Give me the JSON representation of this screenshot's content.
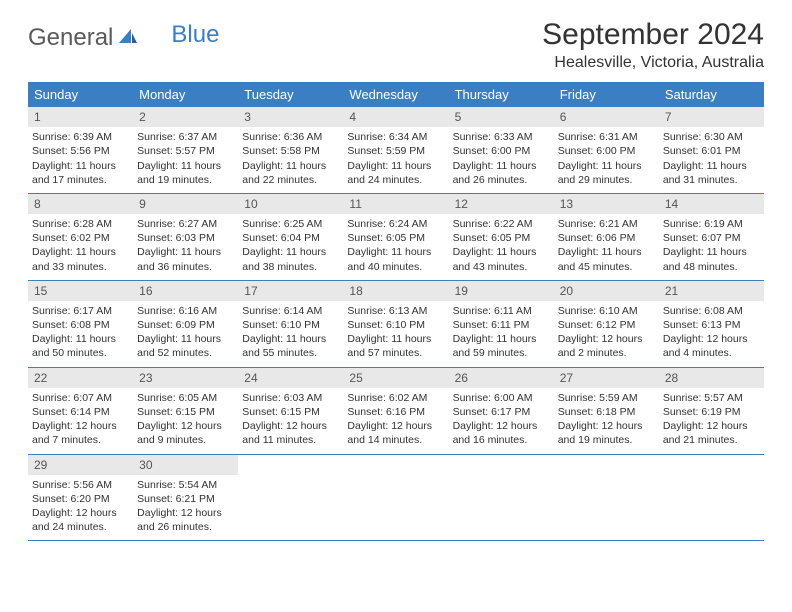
{
  "brand": {
    "part1": "General",
    "part2": "Blue"
  },
  "title": "September 2024",
  "location": "Healesville, Victoria, Australia",
  "colors": {
    "header_bg": "#3a7fc4",
    "daynum_bg": "#e8e8e8",
    "text": "#333333",
    "page_bg": "#ffffff"
  },
  "day_names": [
    "Sunday",
    "Monday",
    "Tuesday",
    "Wednesday",
    "Thursday",
    "Friday",
    "Saturday"
  ],
  "weeks": [
    [
      {
        "n": "1",
        "sr": "6:39 AM",
        "ss": "5:56 PM",
        "dh": "11",
        "dm": "17"
      },
      {
        "n": "2",
        "sr": "6:37 AM",
        "ss": "5:57 PM",
        "dh": "11",
        "dm": "19"
      },
      {
        "n": "3",
        "sr": "6:36 AM",
        "ss": "5:58 PM",
        "dh": "11",
        "dm": "22"
      },
      {
        "n": "4",
        "sr": "6:34 AM",
        "ss": "5:59 PM",
        "dh": "11",
        "dm": "24"
      },
      {
        "n": "5",
        "sr": "6:33 AM",
        "ss": "6:00 PM",
        "dh": "11",
        "dm": "26"
      },
      {
        "n": "6",
        "sr": "6:31 AM",
        "ss": "6:00 PM",
        "dh": "11",
        "dm": "29"
      },
      {
        "n": "7",
        "sr": "6:30 AM",
        "ss": "6:01 PM",
        "dh": "11",
        "dm": "31"
      }
    ],
    [
      {
        "n": "8",
        "sr": "6:28 AM",
        "ss": "6:02 PM",
        "dh": "11",
        "dm": "33"
      },
      {
        "n": "9",
        "sr": "6:27 AM",
        "ss": "6:03 PM",
        "dh": "11",
        "dm": "36"
      },
      {
        "n": "10",
        "sr": "6:25 AM",
        "ss": "6:04 PM",
        "dh": "11",
        "dm": "38"
      },
      {
        "n": "11",
        "sr": "6:24 AM",
        "ss": "6:05 PM",
        "dh": "11",
        "dm": "40"
      },
      {
        "n": "12",
        "sr": "6:22 AM",
        "ss": "6:05 PM",
        "dh": "11",
        "dm": "43"
      },
      {
        "n": "13",
        "sr": "6:21 AM",
        "ss": "6:06 PM",
        "dh": "11",
        "dm": "45"
      },
      {
        "n": "14",
        "sr": "6:19 AM",
        "ss": "6:07 PM",
        "dh": "11",
        "dm": "48"
      }
    ],
    [
      {
        "n": "15",
        "sr": "6:17 AM",
        "ss": "6:08 PM",
        "dh": "11",
        "dm": "50"
      },
      {
        "n": "16",
        "sr": "6:16 AM",
        "ss": "6:09 PM",
        "dh": "11",
        "dm": "52"
      },
      {
        "n": "17",
        "sr": "6:14 AM",
        "ss": "6:10 PM",
        "dh": "11",
        "dm": "55"
      },
      {
        "n": "18",
        "sr": "6:13 AM",
        "ss": "6:10 PM",
        "dh": "11",
        "dm": "57"
      },
      {
        "n": "19",
        "sr": "6:11 AM",
        "ss": "6:11 PM",
        "dh": "11",
        "dm": "59"
      },
      {
        "n": "20",
        "sr": "6:10 AM",
        "ss": "6:12 PM",
        "dh": "12",
        "dm": "2"
      },
      {
        "n": "21",
        "sr": "6:08 AM",
        "ss": "6:13 PM",
        "dh": "12",
        "dm": "4"
      }
    ],
    [
      {
        "n": "22",
        "sr": "6:07 AM",
        "ss": "6:14 PM",
        "dh": "12",
        "dm": "7"
      },
      {
        "n": "23",
        "sr": "6:05 AM",
        "ss": "6:15 PM",
        "dh": "12",
        "dm": "9"
      },
      {
        "n": "24",
        "sr": "6:03 AM",
        "ss": "6:15 PM",
        "dh": "12",
        "dm": "11"
      },
      {
        "n": "25",
        "sr": "6:02 AM",
        "ss": "6:16 PM",
        "dh": "12",
        "dm": "14"
      },
      {
        "n": "26",
        "sr": "6:00 AM",
        "ss": "6:17 PM",
        "dh": "12",
        "dm": "16"
      },
      {
        "n": "27",
        "sr": "5:59 AM",
        "ss": "6:18 PM",
        "dh": "12",
        "dm": "19"
      },
      {
        "n": "28",
        "sr": "5:57 AM",
        "ss": "6:19 PM",
        "dh": "12",
        "dm": "21"
      }
    ],
    [
      {
        "n": "29",
        "sr": "5:56 AM",
        "ss": "6:20 PM",
        "dh": "12",
        "dm": "24"
      },
      {
        "n": "30",
        "sr": "5:54 AM",
        "ss": "6:21 PM",
        "dh": "12",
        "dm": "26"
      },
      null,
      null,
      null,
      null,
      null
    ]
  ],
  "labels": {
    "sunrise": "Sunrise:",
    "sunset": "Sunset:",
    "daylight": "Daylight:",
    "hours": "hours",
    "and": "and",
    "minutes": "minutes."
  }
}
